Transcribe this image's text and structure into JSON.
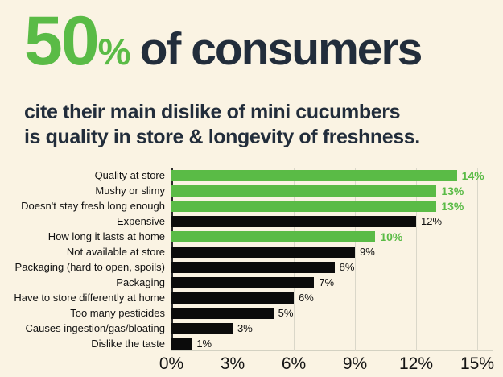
{
  "header": {
    "stat_number": "50",
    "stat_percent": "%",
    "title_rest": "of consumers",
    "subtitle_line1": "cite their main dislike of mini cucumbers",
    "subtitle_line2": "is quality in store & longevity of freshness."
  },
  "colors": {
    "highlight_green": "#5abb46",
    "bar_black": "#0b0b0b",
    "title_navy": "#222d3b",
    "background_cream": "#faf3e3",
    "gridline": "#dad7c9"
  },
  "chart_data": {
    "type": "bar",
    "orientation": "horizontal",
    "title": "50% of consumers cite their main dislike of mini cucumbers is quality in store & longevity of freshness.",
    "categories": [
      "Quality at store",
      "Mushy or slimy",
      "Doesn't stay fresh long enough",
      "Expensive",
      "How long it lasts at home",
      "Not available at store",
      "Packaging (hard to open, spoils)",
      "Packaging",
      "Have to store differently at home",
      "Too many pesticides",
      "Causes ingestion/gas/bloating",
      "Dislike the taste"
    ],
    "values": [
      14,
      13,
      13,
      12,
      10,
      9,
      8,
      7,
      6,
      5,
      3,
      1
    ],
    "value_labels": [
      "14%",
      "13%",
      "13%",
      "12%",
      "10%",
      "9%",
      "8%",
      "7%",
      "6%",
      "5%",
      "3%",
      "1%"
    ],
    "highlighted": [
      true,
      true,
      true,
      false,
      true,
      false,
      false,
      false,
      false,
      false,
      false,
      false
    ],
    "x_ticks": [
      "0%",
      "3%",
      "6%",
      "9%",
      "12%",
      "15%"
    ],
    "xlim": [
      0,
      15
    ],
    "grid": "vertical",
    "legend": "none"
  }
}
